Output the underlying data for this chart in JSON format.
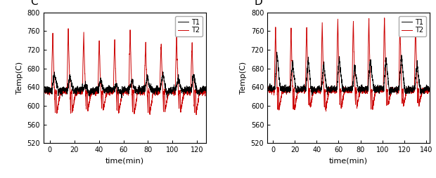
{
  "panel_C": {
    "label": "C",
    "xlim": [
      -5,
      127
    ],
    "xticks": [
      0,
      20,
      40,
      60,
      80,
      100,
      120
    ],
    "xlabel": "time(min)",
    "ylabel": "Temp(C)",
    "ylim": [
      520,
      800
    ],
    "yticks": [
      520,
      560,
      600,
      640,
      680,
      720,
      760,
      800
    ],
    "n_cycles": 10,
    "cycle_duration": 12.6,
    "T1_base": 635,
    "T1_peak": 660,
    "T2_base": 630,
    "T2_spike_peak": 755,
    "T2_drop": 580,
    "noise_T1": 6,
    "noise_T2": 4
  },
  "panel_D": {
    "label": "D",
    "xlim": [
      -5,
      143
    ],
    "xticks": [
      0,
      20,
      40,
      60,
      80,
      100,
      120,
      140
    ],
    "xlabel": "time(min)",
    "ylabel": "Temp(C)",
    "ylim": [
      520,
      800
    ],
    "yticks": [
      520,
      560,
      600,
      640,
      680,
      720,
      760,
      800
    ],
    "n_cycles": 10,
    "cycle_duration": 14.2,
    "T1_base": 637,
    "T1_peak": 700,
    "T2_base": 633,
    "T2_spike_peak": 785,
    "T2_drop": 590,
    "noise_T1": 6,
    "noise_T2": 4
  },
  "T1_color": "#000000",
  "T2_color": "#cc0000",
  "linewidth": 0.7,
  "legend_fontsize": 7,
  "tick_fontsize": 7,
  "label_fontsize": 8,
  "panel_label_fontsize": 11,
  "bg_color": "#ffffff"
}
